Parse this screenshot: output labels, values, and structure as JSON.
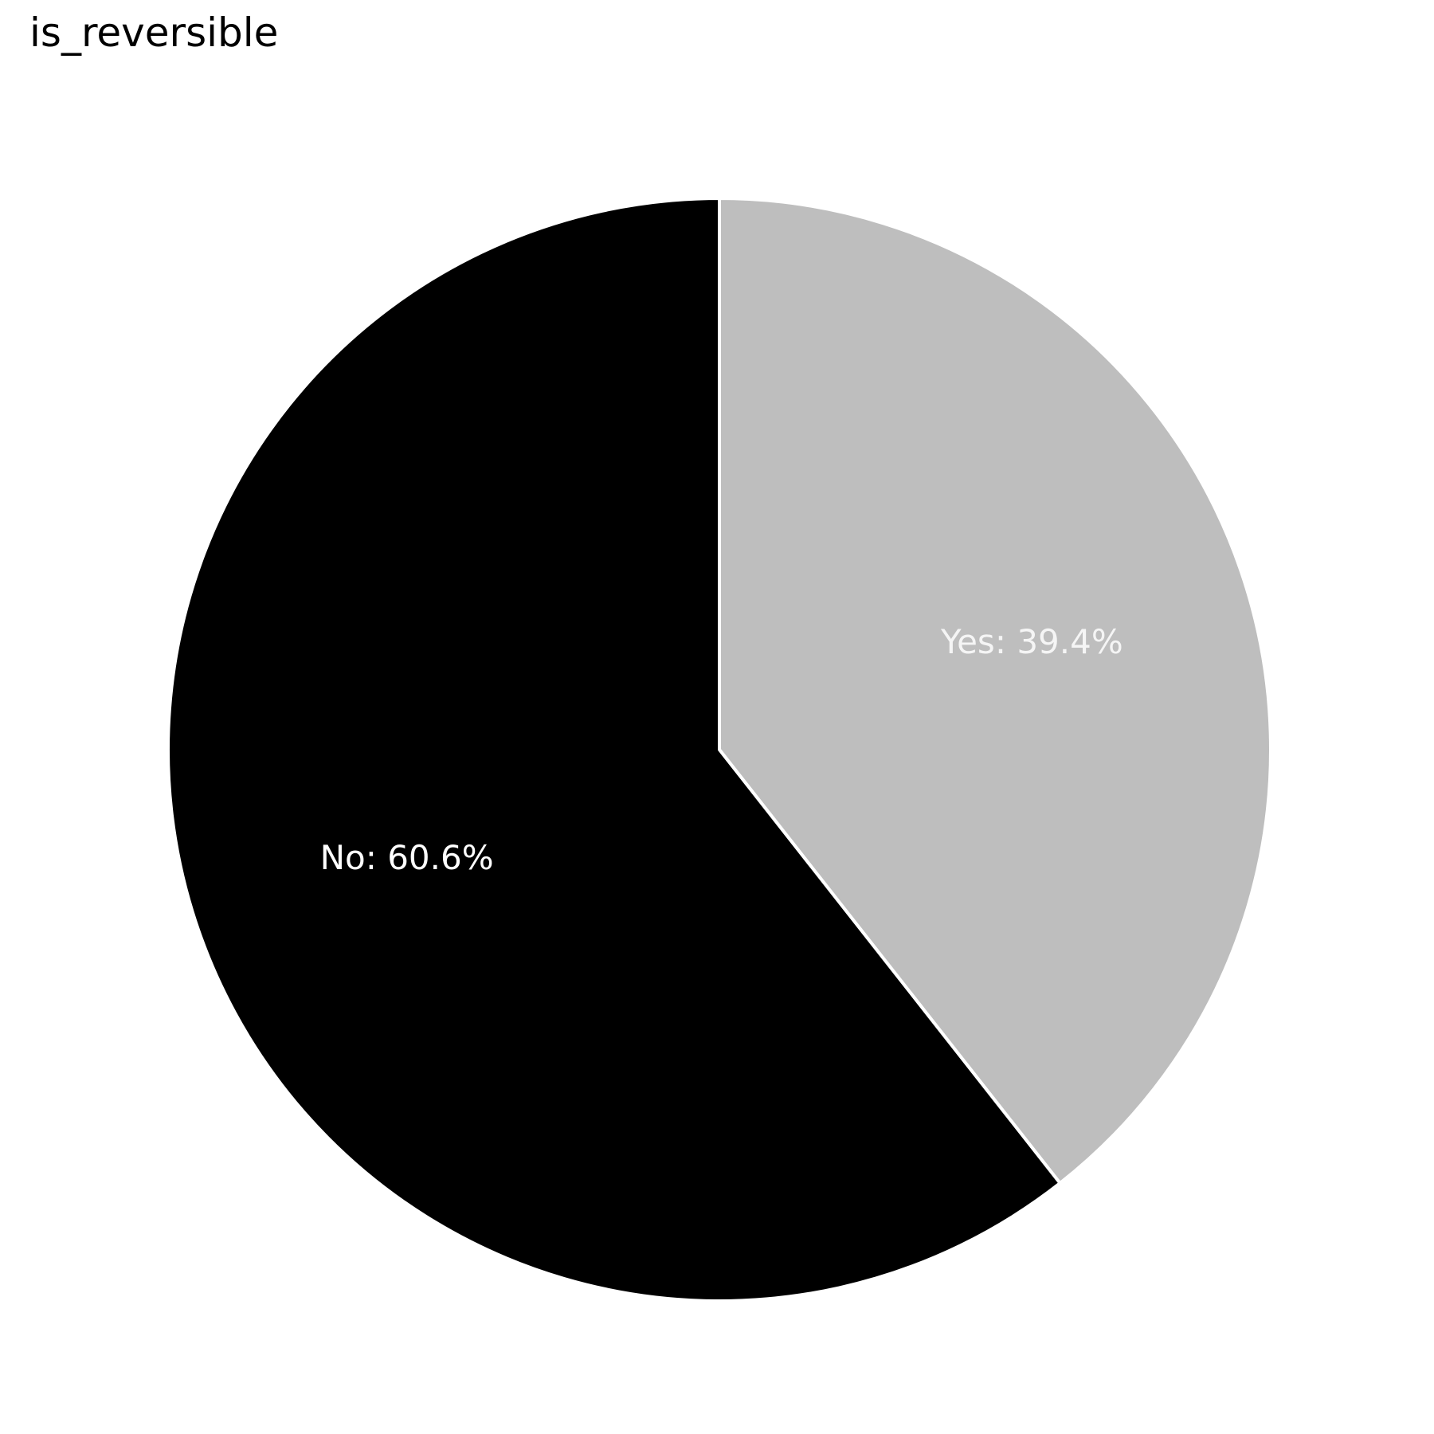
{
  "chart_data": {
    "type": "pie",
    "title": "is_reversible",
    "slices": [
      {
        "label": "Yes",
        "value": 39.4,
        "display": "Yes: 39.4%",
        "color": "#bebebe",
        "text_color": "#f5f5f5"
      },
      {
        "label": "No",
        "value": 60.6,
        "display": "No: 60.6%",
        "color": "#000000",
        "text_color": "#ffffff"
      }
    ],
    "start_angle": "top",
    "direction": "clockwise"
  }
}
